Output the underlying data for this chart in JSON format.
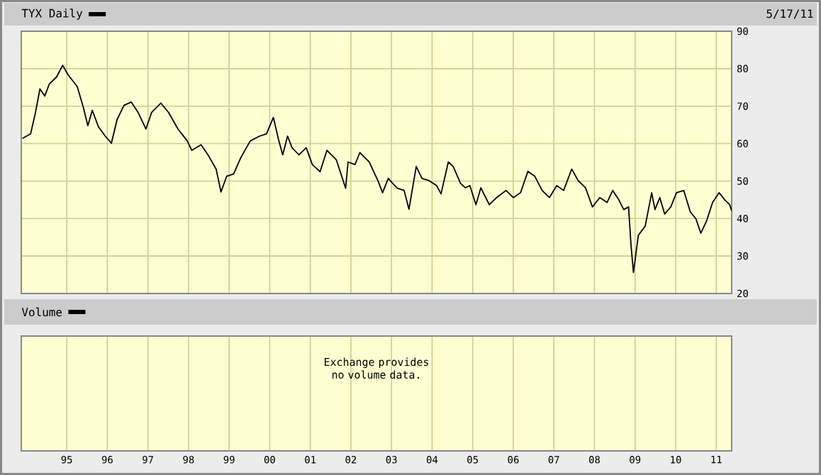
{
  "chart_data": {
    "type": "line",
    "title": "TYX Daily",
    "subtitle": "5/17/11",
    "annotations": [
      "Volume",
      "Exchange provides no volume data."
    ],
    "series": [
      {
        "color": "#000000",
        "axis": "y2",
        "x": [
          1993.91,
          1994.11,
          1994.23,
          1994.34,
          1994.46,
          1994.57,
          1994.75,
          1994.9,
          1995.03,
          1995.26,
          1995.41,
          1995.52,
          1995.63,
          1995.78,
          1995.95,
          1996.1,
          1996.24,
          1996.41,
          1996.59,
          1996.76,
          1996.95,
          1997.09,
          1997.32,
          1997.51,
          1997.74,
          1997.97,
          1998.08,
          1998.31,
          1998.48,
          1998.68,
          1998.8,
          1998.94,
          1999.11,
          1999.29,
          1999.52,
          1999.75,
          1999.92,
          2000.09,
          2000.21,
          2000.32,
          2000.44,
          2000.55,
          2000.72,
          2000.9,
          2001.05,
          2001.24,
          2001.41,
          2001.64,
          2001.87,
          2001.93,
          2002.1,
          2002.22,
          2002.45,
          2002.67,
          2002.78,
          2002.92,
          2003.14,
          2003.31,
          2003.43,
          2003.61,
          2003.75,
          2003.93,
          2004.11,
          2004.22,
          2004.4,
          2004.52,
          2004.7,
          2004.82,
          2004.93,
          2005.08,
          2005.2,
          2005.41,
          2005.59,
          2005.82,
          2006.0,
          2006.18,
          2006.36,
          2006.53,
          2006.71,
          2006.89,
          2007.07,
          2007.24,
          2007.44,
          2007.6,
          2007.78,
          2007.95,
          2008.13,
          2008.31,
          2008.45,
          2008.6,
          2008.72,
          2008.84,
          2008.9,
          2008.96,
          2009.08,
          2009.25,
          2009.41,
          2009.49,
          2009.61,
          2009.73,
          2009.88,
          2010.02,
          2010.2,
          2010.36,
          2010.5,
          2010.62,
          2010.76,
          2010.91,
          2011.07,
          2011.21,
          2011.33,
          2011.38
        ],
        "values": [
          61.4,
          62.6,
          68.3,
          74.6,
          72.7,
          75.9,
          77.8,
          80.9,
          78.4,
          75.2,
          69.6,
          64.8,
          68.9,
          64.5,
          62.0,
          60.1,
          66.4,
          70.2,
          71.1,
          68.3,
          63.9,
          68.3,
          70.8,
          68.3,
          63.9,
          60.7,
          58.2,
          59.7,
          57.0,
          53.2,
          47.1,
          51.3,
          51.9,
          56.3,
          60.7,
          62.0,
          62.6,
          67.0,
          61.4,
          57.0,
          62.0,
          58.9,
          57.0,
          58.9,
          54.4,
          52.5,
          58.2,
          55.7,
          48.1,
          55.1,
          54.4,
          57.6,
          55.1,
          50.0,
          46.9,
          50.7,
          48.1,
          47.5,
          42.5,
          53.9,
          50.7,
          50.1,
          48.8,
          46.6,
          55.1,
          53.9,
          49.4,
          48.2,
          48.8,
          43.7,
          48.2,
          43.7,
          45.6,
          47.5,
          45.6,
          46.9,
          52.6,
          51.3,
          47.5,
          45.6,
          48.8,
          47.5,
          53.2,
          50.1,
          48.2,
          43.1,
          45.6,
          44.3,
          47.5,
          45.0,
          42.4,
          43.1,
          32.9,
          25.6,
          35.5,
          38.0,
          46.9,
          42.4,
          45.6,
          41.2,
          43.1,
          46.9,
          47.5,
          41.8,
          39.9,
          36.1,
          39.3,
          44.3,
          46.9,
          45.0,
          43.7,
          42.1
        ]
      }
    ],
    "xlim": [
      1993.88,
      2011.38
    ],
    "y2lim": [
      20,
      90
    ],
    "xticks": [
      {
        "value": 1995,
        "label": "95"
      },
      {
        "value": 1996,
        "label": "96"
      },
      {
        "value": 1997,
        "label": "97"
      },
      {
        "value": 1998,
        "label": "98"
      },
      {
        "value": 1999,
        "label": "99"
      },
      {
        "value": 2000,
        "label": "00"
      },
      {
        "value": 2001,
        "label": "01"
      },
      {
        "value": 2002,
        "label": "02"
      },
      {
        "value": 2003,
        "label": "03"
      },
      {
        "value": 2004,
        "label": "04"
      },
      {
        "value": 2005,
        "label": "05"
      },
      {
        "value": 2006,
        "label": "06"
      },
      {
        "value": 2007,
        "label": "07"
      },
      {
        "value": 2008,
        "label": "08"
      },
      {
        "value": 2009,
        "label": "09"
      },
      {
        "value": 2010,
        "label": "10"
      },
      {
        "value": 2011,
        "label": "11"
      }
    ],
    "y2ticks": [
      20,
      30,
      40,
      50,
      60,
      70,
      80,
      90
    ],
    "grid": true
  }
}
